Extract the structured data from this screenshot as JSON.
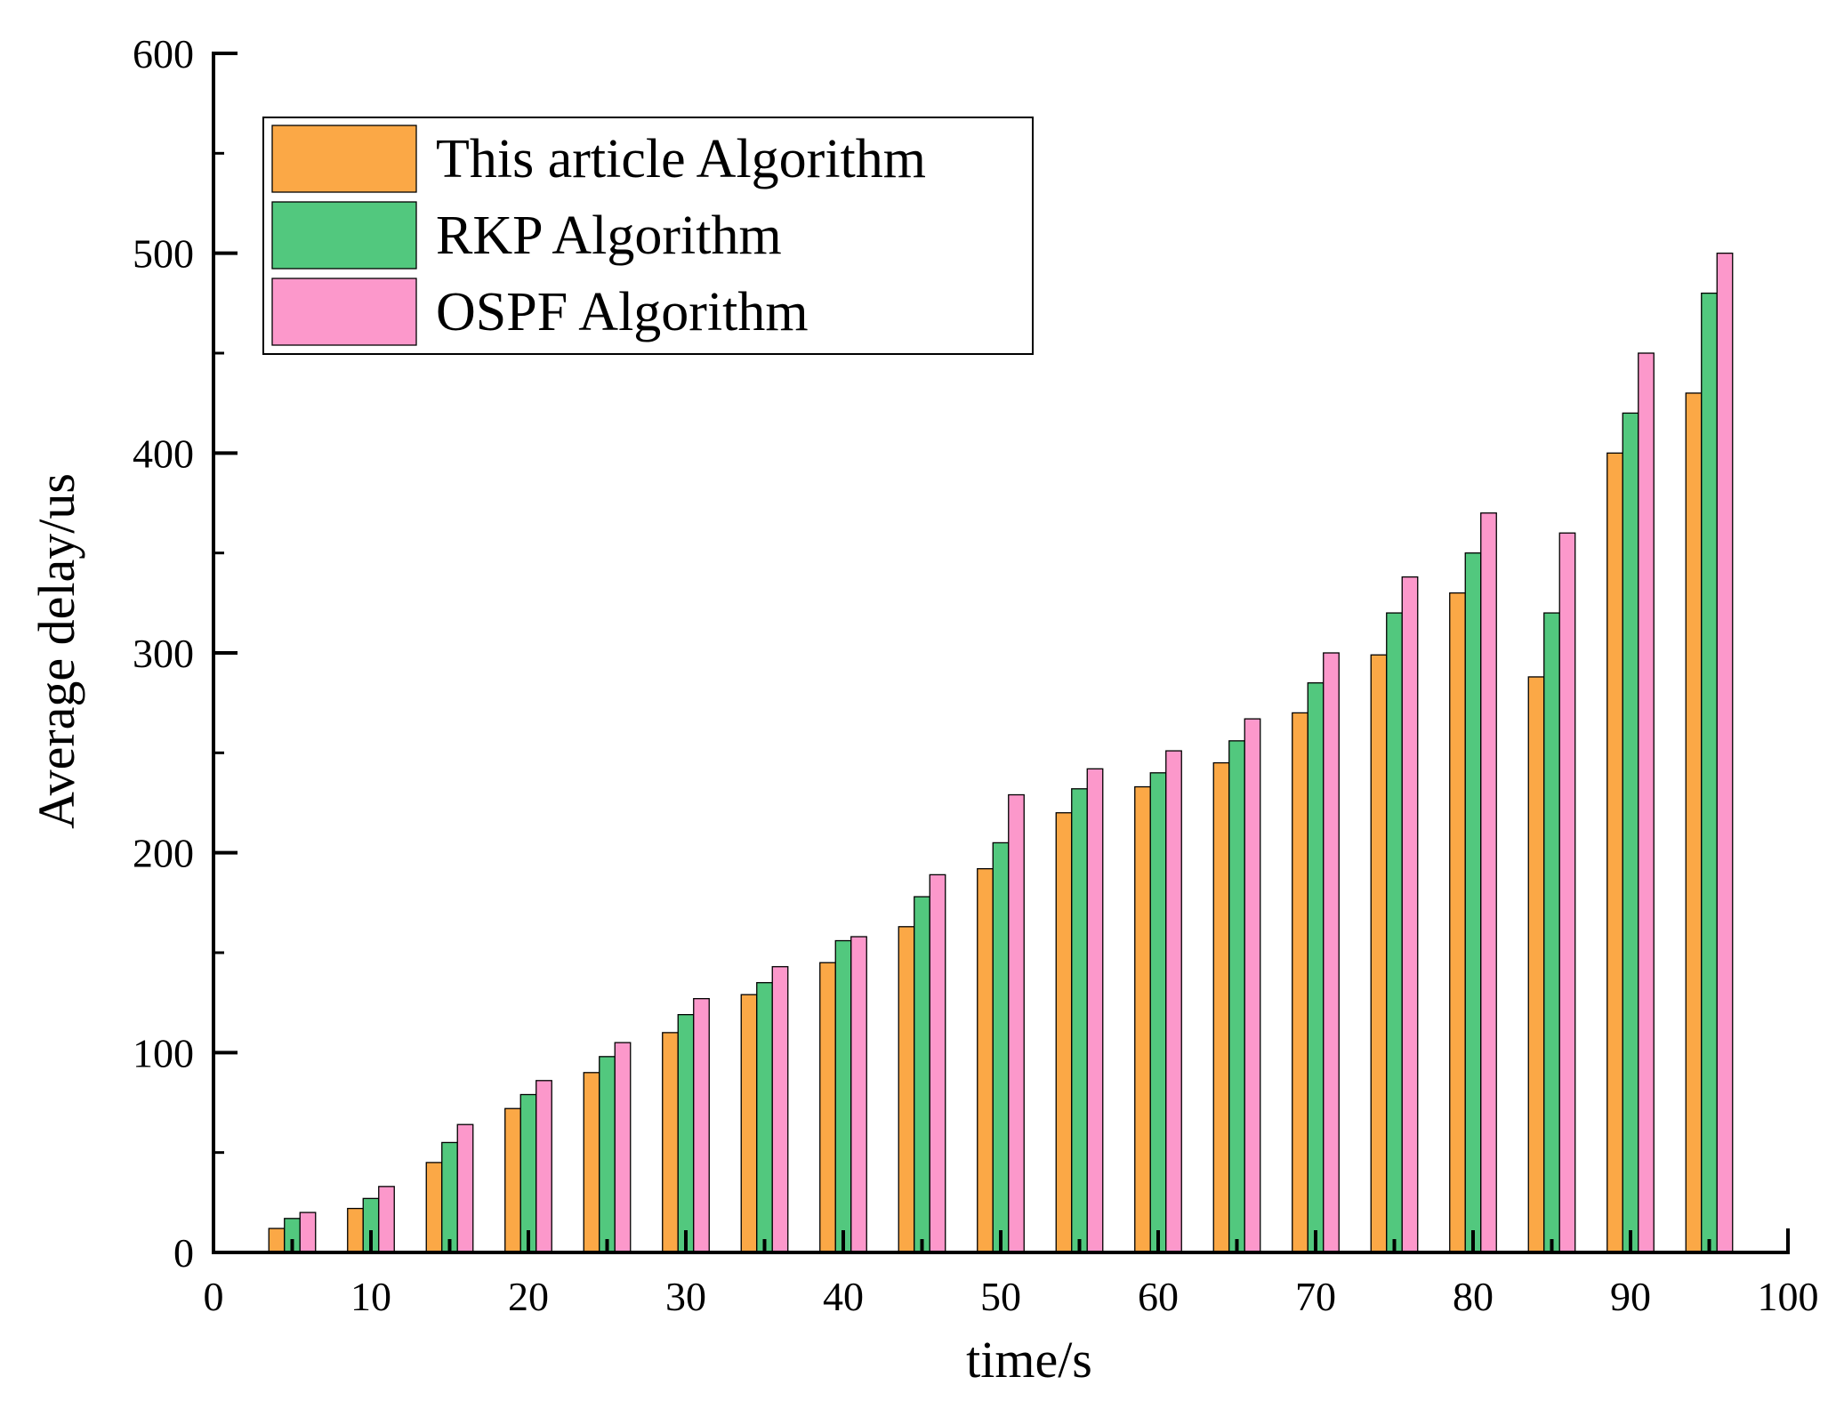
{
  "chart_data": {
    "type": "bar",
    "title": "",
    "xlabel": "time/s",
    "ylabel": "Average delay/us",
    "xlim": [
      0,
      100
    ],
    "ylim": [
      0,
      600
    ],
    "x_ticks": [
      "0",
      "10",
      "20",
      "30",
      "40",
      "50",
      "60",
      "70",
      "80",
      "90",
      "100"
    ],
    "y_ticks": [
      "0",
      "100",
      "200",
      "300",
      "400",
      "500",
      "600"
    ],
    "x": [
      5,
      10,
      15,
      20,
      25,
      30,
      35,
      40,
      45,
      50,
      55,
      60,
      65,
      70,
      75,
      80,
      85,
      90,
      95
    ],
    "series": [
      {
        "name": "This article Algorithm",
        "color": "#FBA846",
        "values": [
          12,
          22,
          45,
          72,
          90,
          110,
          129,
          145,
          163,
          192,
          220,
          233,
          245,
          270,
          299,
          330,
          288,
          400,
          430
        ]
      },
      {
        "name": "RKP Algorithm",
        "color": "#52C87E",
        "values": [
          17,
          27,
          55,
          79,
          98,
          119,
          135,
          156,
          178,
          205,
          232,
          240,
          256,
          285,
          320,
          350,
          320,
          420,
          480
        ]
      },
      {
        "name": "OSPF Algorithm",
        "color": "#FC98CB",
        "values": [
          20,
          33,
          64,
          86,
          105,
          127,
          143,
          158,
          189,
          229,
          242,
          251,
          267,
          300,
          338,
          370,
          360,
          450,
          500
        ]
      }
    ],
    "legend_position": "top-left",
    "grid": false
  }
}
